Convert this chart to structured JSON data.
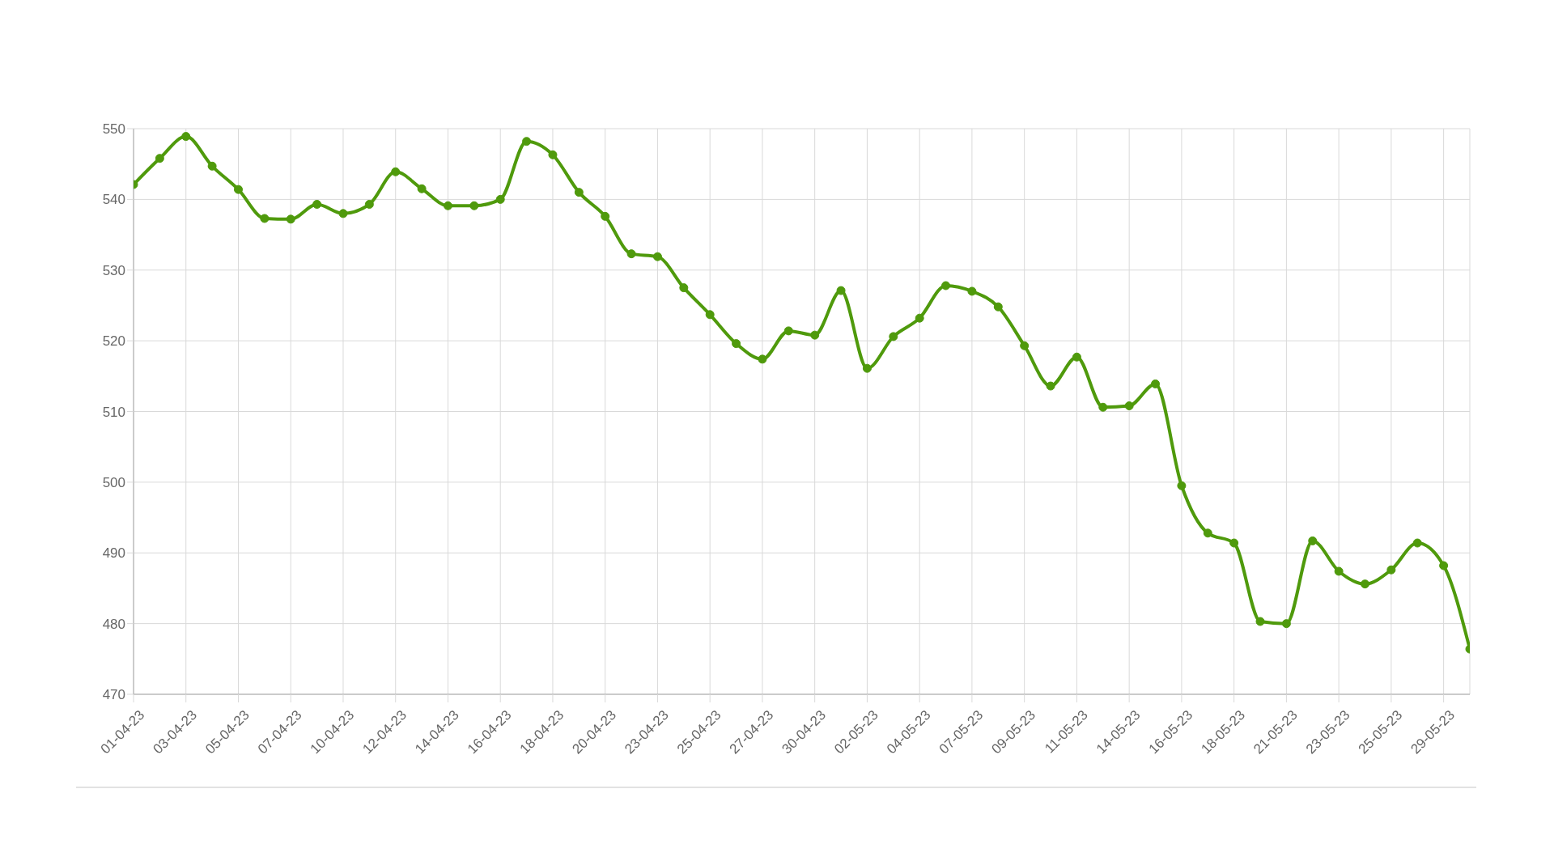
{
  "chart_data": {
    "type": "line",
    "categories": [
      "01-04-23",
      null,
      "03-04-23",
      null,
      "05-04-23",
      null,
      "07-04-23",
      null,
      "10-04-23",
      null,
      "12-04-23",
      null,
      "14-04-23",
      null,
      "16-04-23",
      null,
      "18-04-23",
      null,
      "20-04-23",
      null,
      "23-04-23",
      null,
      "25-04-23",
      null,
      "27-04-23",
      null,
      "30-04-23",
      null,
      "02-05-23",
      null,
      "04-05-23",
      null,
      "07-05-23",
      null,
      "09-05-23",
      null,
      "11-05-23",
      null,
      "14-05-23",
      null,
      "16-05-23",
      null,
      "18-05-23",
      null,
      "21-05-23",
      null,
      "23-05-23",
      null,
      "25-05-23",
      null,
      "29-05-23",
      null
    ],
    "series": [
      {
        "color": "#4f9a0c",
        "values": [
          542.1,
          545.8,
          548.9,
          544.7,
          541.4,
          537.3,
          537.2,
          539.3,
          538.0,
          539.3,
          543.9,
          541.5,
          539.1,
          539.1,
          540.0,
          548.2,
          546.3,
          541.0,
          537.6,
          532.3,
          531.9,
          527.5,
          523.7,
          519.6,
          517.4,
          521.4,
          520.8,
          527.1,
          516.1,
          520.6,
          523.2,
          527.8,
          527.0,
          524.8,
          519.3,
          513.6,
          517.7,
          510.6,
          510.8,
          513.9,
          499.5,
          492.8,
          491.4,
          480.3,
          480.0,
          491.7,
          487.4,
          485.6,
          487.6,
          491.4,
          488.2,
          476.4
        ]
      }
    ],
    "ylim": [
      470,
      550
    ],
    "yticks": [
      470,
      480,
      490,
      500,
      510,
      520,
      530,
      540,
      550
    ],
    "grid": true,
    "marker": "circle"
  }
}
